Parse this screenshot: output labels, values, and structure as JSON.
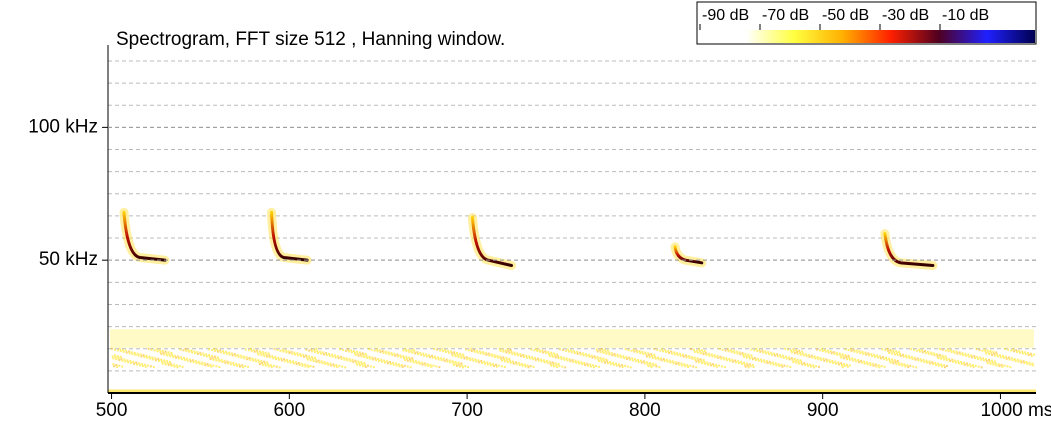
{
  "chart_data": {
    "type": "spectrogram",
    "title": "Spectrogram, FFT size 512 , Hanning window.",
    "xlim": [
      498,
      1020
    ],
    "xticks": [
      500,
      600,
      700,
      800,
      900,
      {
        "value": 1000,
        "label": "1000 ms"
      }
    ],
    "ylim": [
      0,
      131
    ],
    "yticks": [
      {
        "value": 50,
        "label": "50 kHz"
      },
      {
        "value": 100,
        "label": "100 kHz"
      }
    ],
    "grid": true,
    "calls": [
      {
        "x": [
          507,
          510,
          516,
          530
        ],
        "y": [
          68,
          56,
          51,
          50
        ]
      },
      {
        "x": [
          590,
          592,
          597,
          610
        ],
        "y": [
          68,
          56,
          51,
          50
        ]
      },
      {
        "x": [
          703,
          706,
          712,
          725
        ],
        "y": [
          66,
          56,
          50,
          48
        ]
      },
      {
        "x": [
          817,
          819,
          823,
          832
        ],
        "y": [
          55,
          52,
          50,
          49
        ]
      },
      {
        "x": [
          935,
          938,
          944,
          962
        ],
        "y": [
          60,
          54,
          49,
          48
        ]
      }
    ],
    "noise_band": [
      17,
      24
    ],
    "colorbar": {
      "lim": [
        -91,
        22
      ],
      "ticks": [
        {
          "value": -90,
          "label": "-90 dB"
        },
        {
          "value": -70,
          "label": "-70 dB"
        },
        {
          "value": -50,
          "label": "-50 dB"
        },
        {
          "value": -30,
          "label": "-30 dB"
        },
        {
          "value": -10,
          "label": "-10 dB"
        }
      ],
      "colors": [
        "#ffffff",
        "#ffffff",
        "#ffff40",
        "#ffb000",
        "#ff2000",
        "#500020",
        "#2020ff",
        "#000050"
      ]
    }
  }
}
